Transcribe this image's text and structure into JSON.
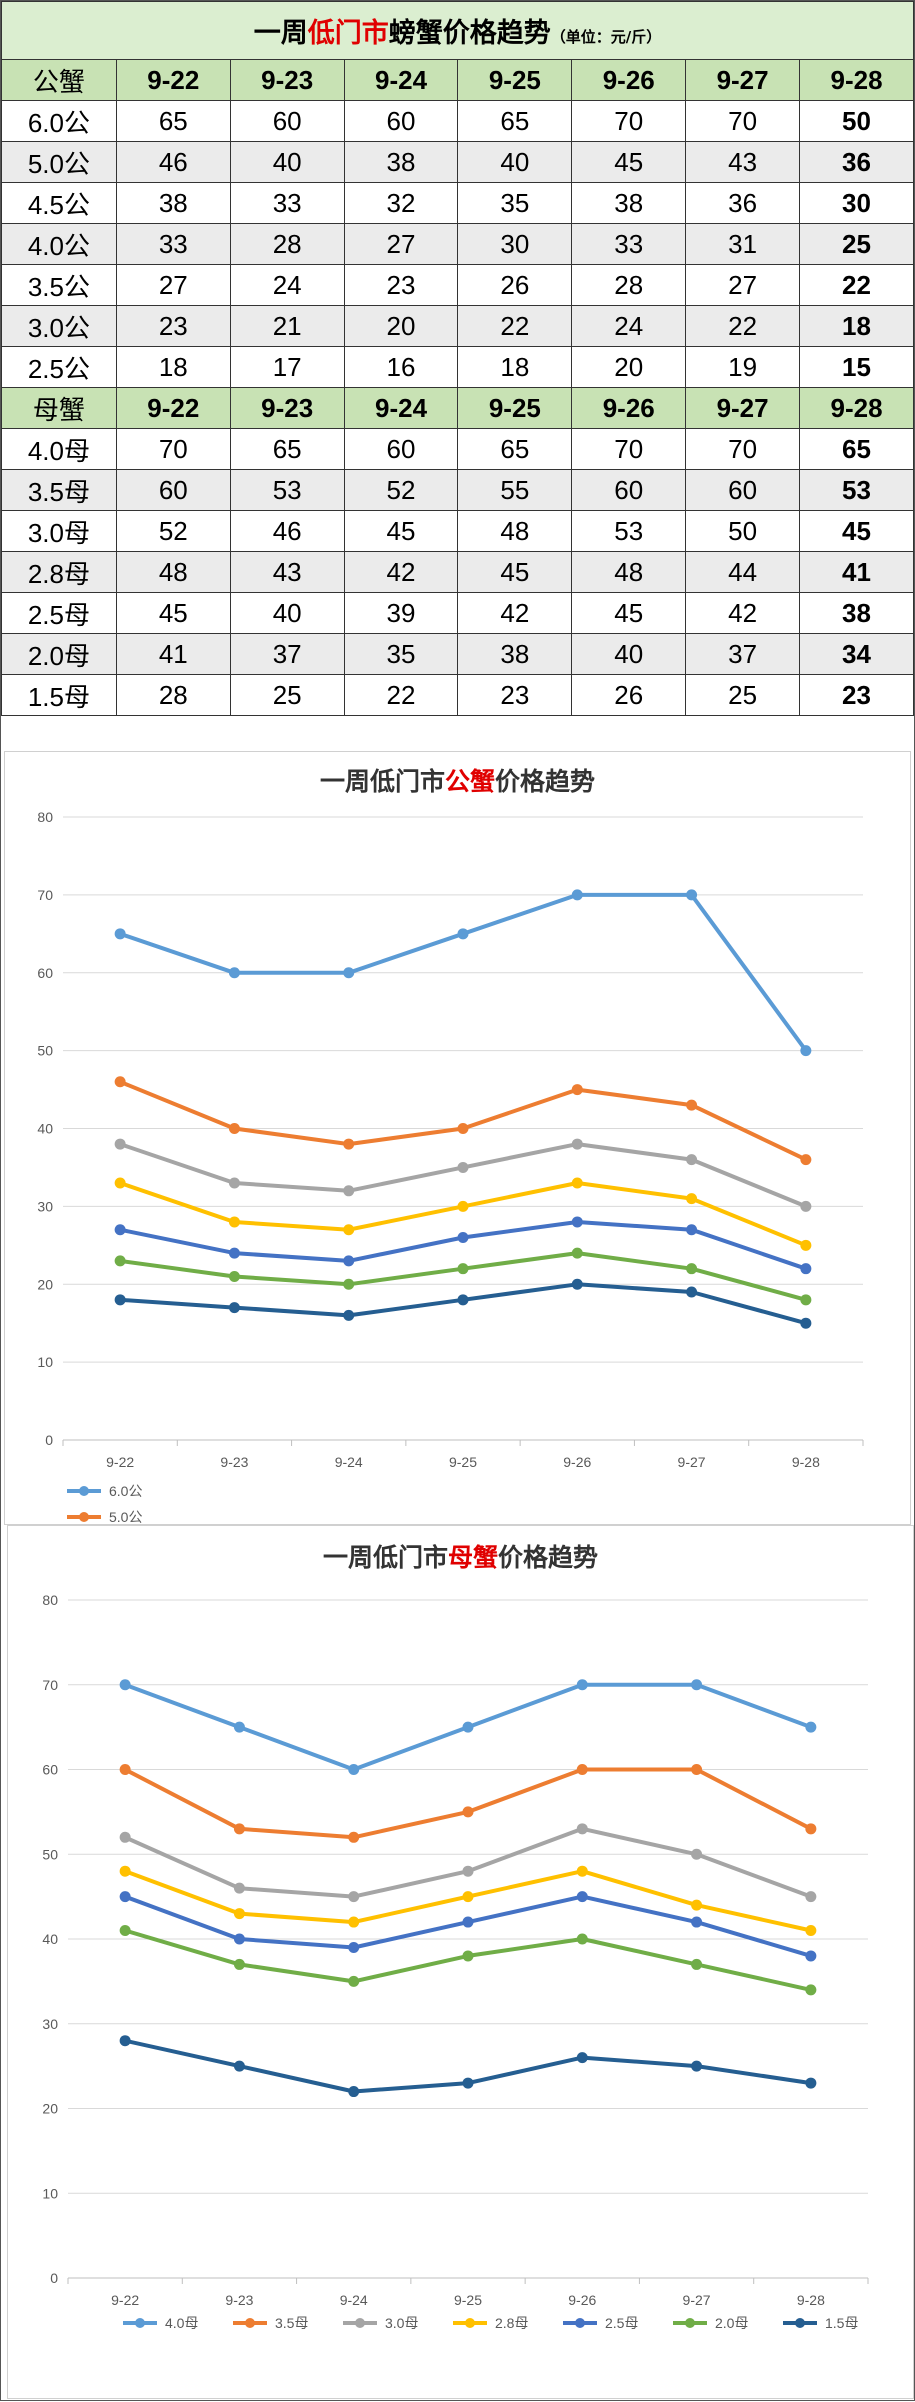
{
  "table": {
    "title_pre": "一周",
    "title_red": "低门市",
    "title_post": "螃蟹价格趋势",
    "title_unit": "（单位：元/斤）",
    "dates": [
      "9-22",
      "9-23",
      "9-24",
      "9-25",
      "9-26",
      "9-27",
      "9-28"
    ],
    "male_header": "公蟹",
    "male_rows": [
      {
        "label": "6.0公",
        "values": [
          65,
          60,
          60,
          65,
          70,
          70,
          50
        ]
      },
      {
        "label": "5.0公",
        "values": [
          46,
          40,
          38,
          40,
          45,
          43,
          36
        ]
      },
      {
        "label": "4.5公",
        "values": [
          38,
          33,
          32,
          35,
          38,
          36,
          30
        ]
      },
      {
        "label": "4.0公",
        "values": [
          33,
          28,
          27,
          30,
          33,
          31,
          25
        ]
      },
      {
        "label": "3.5公",
        "values": [
          27,
          24,
          23,
          26,
          28,
          27,
          22
        ]
      },
      {
        "label": "3.0公",
        "values": [
          23,
          21,
          20,
          22,
          24,
          22,
          18
        ]
      },
      {
        "label": "2.5公",
        "values": [
          18,
          17,
          16,
          18,
          20,
          19,
          15
        ]
      }
    ],
    "female_header": "母蟹",
    "female_rows": [
      {
        "label": "4.0母",
        "values": [
          70,
          65,
          60,
          65,
          70,
          70,
          65
        ]
      },
      {
        "label": "3.5母",
        "values": [
          60,
          53,
          52,
          55,
          60,
          60,
          53
        ]
      },
      {
        "label": "3.0母",
        "values": [
          52,
          46,
          45,
          48,
          53,
          50,
          45
        ]
      },
      {
        "label": "2.8母",
        "values": [
          48,
          43,
          42,
          45,
          48,
          44,
          41
        ]
      },
      {
        "label": "2.5母",
        "values": [
          45,
          40,
          39,
          42,
          45,
          42,
          38
        ]
      },
      {
        "label": "2.0母",
        "values": [
          41,
          37,
          35,
          38,
          40,
          37,
          34
        ]
      },
      {
        "label": "1.5母",
        "values": [
          28,
          25,
          22,
          23,
          26,
          25,
          23
        ]
      }
    ]
  },
  "colors": [
    "#5b9bd5",
    "#ed7d31",
    "#a5a5a5",
    "#ffc000",
    "#4472c4",
    "#70ad47",
    "#255e91"
  ],
  "chart_data": [
    {
      "type": "line",
      "title_pre": "一周低门市",
      "title_red": "公蟹",
      "title_post": "价格趋势",
      "x": [
        "9-22",
        "9-23",
        "9-24",
        "9-25",
        "9-26",
        "9-27",
        "9-28"
      ],
      "ylim": [
        0,
        80
      ],
      "yticks": [
        0,
        10,
        20,
        30,
        40,
        50,
        60,
        70,
        80
      ],
      "grid": true,
      "legend": "bottom",
      "legend_visible": [
        "6.0公",
        "5.0公"
      ],
      "series": [
        {
          "name": "6.0公",
          "values": [
            65,
            60,
            60,
            65,
            70,
            70,
            50
          ]
        },
        {
          "name": "5.0公",
          "values": [
            46,
            40,
            38,
            40,
            45,
            43,
            36
          ]
        },
        {
          "values": [
            38,
            33,
            32,
            35,
            38,
            36,
            30
          ]
        },
        {
          "values": [
            33,
            28,
            27,
            30,
            33,
            31,
            25
          ]
        },
        {
          "values": [
            27,
            24,
            23,
            26,
            28,
            27,
            22
          ]
        },
        {
          "values": [
            23,
            21,
            20,
            22,
            24,
            22,
            18
          ]
        },
        {
          "values": [
            18,
            17,
            16,
            18,
            20,
            19,
            15
          ]
        }
      ]
    },
    {
      "type": "line",
      "title_pre": "一周低门市",
      "title_red": "母蟹",
      "title_post": "价格趋势",
      "x": [
        "9-22",
        "9-23",
        "9-24",
        "9-25",
        "9-26",
        "9-27",
        "9-28"
      ],
      "ylim": [
        0,
        80
      ],
      "yticks": [
        0,
        10,
        20,
        30,
        40,
        50,
        60,
        70,
        80
      ],
      "grid": true,
      "legend": "bottom",
      "series": [
        {
          "name": "4.0母",
          "values": [
            70,
            65,
            60,
            65,
            70,
            70,
            65
          ]
        },
        {
          "name": "3.5母",
          "values": [
            60,
            53,
            52,
            55,
            60,
            60,
            53
          ]
        },
        {
          "name": "3.0母",
          "values": [
            52,
            46,
            45,
            48,
            53,
            50,
            45
          ]
        },
        {
          "name": "2.8母",
          "values": [
            48,
            43,
            42,
            45,
            48,
            44,
            41
          ]
        },
        {
          "name": "2.5母",
          "values": [
            45,
            40,
            39,
            42,
            45,
            42,
            38
          ]
        },
        {
          "name": "2.0母",
          "values": [
            41,
            37,
            35,
            38,
            40,
            37,
            34
          ]
        },
        {
          "name": "1.5母",
          "values": [
            28,
            25,
            22,
            23,
            26,
            25,
            23
          ]
        }
      ]
    }
  ]
}
